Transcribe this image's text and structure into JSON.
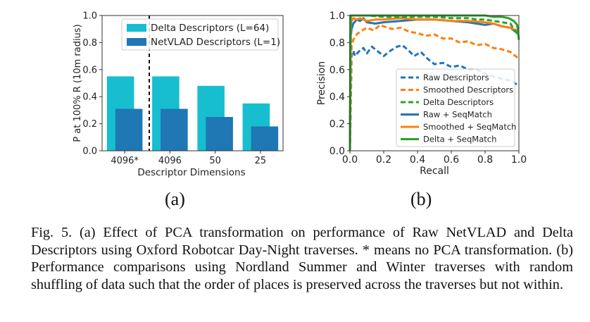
{
  "chart_data": [
    {
      "type": "bar",
      "categories": [
        "4096*",
        "4096",
        "50",
        "25"
      ],
      "series": [
        {
          "name": "Delta Descriptors (L=64)",
          "values": [
            0.55,
            0.55,
            0.48,
            0.35
          ],
          "color": "#17becf"
        },
        {
          "name": "NetVLAD Descriptors (L=1)",
          "values": [
            0.31,
            0.31,
            0.25,
            0.18
          ],
          "color": "#1f77b4"
        }
      ],
      "xlabel": "Descriptor Dimensions",
      "ylabel": "P at 100% R (10m radius)",
      "ylim": [
        0,
        1.0
      ],
      "yticks": [
        "0.0",
        "0.2",
        "0.4",
        "0.6",
        "0.8",
        "1.0"
      ],
      "legend_position": "top-right",
      "annotation": "dashed vertical separator between 4096* and 4096",
      "grid": false
    },
    {
      "type": "line",
      "xlabel": "Recall",
      "ylabel": "Precision",
      "xlim": [
        0,
        1.0
      ],
      "ylim": [
        0,
        1.0
      ],
      "xticks": [
        "0.0",
        "0.2",
        "0.4",
        "0.6",
        "0.8",
        "1.0"
      ],
      "yticks": [
        "0.0",
        "0.2",
        "0.4",
        "0.6",
        "0.8",
        "1.0"
      ],
      "legend_position": "lower-right",
      "grid": false,
      "series": [
        {
          "name": "Raw Descriptors",
          "color": "#1f77b4",
          "dash": true,
          "x": [
            0.0,
            0.01,
            0.02,
            0.03,
            0.05,
            0.08,
            0.1,
            0.13,
            0.16,
            0.2,
            0.24,
            0.28,
            0.31,
            0.34,
            0.38,
            0.42,
            0.46,
            0.5,
            0.55,
            0.6,
            0.65,
            0.7,
            0.75,
            0.8,
            0.85,
            0.9,
            0.95,
            1.0
          ],
          "y": [
            0.0,
            0.7,
            0.74,
            0.7,
            0.73,
            0.76,
            0.72,
            0.77,
            0.74,
            0.7,
            0.74,
            0.77,
            0.78,
            0.75,
            0.7,
            0.73,
            0.68,
            0.64,
            0.65,
            0.62,
            0.63,
            0.6,
            0.6,
            0.57,
            0.55,
            0.53,
            0.52,
            0.48
          ]
        },
        {
          "name": "Smoothed Descriptors",
          "color": "#ff7f0e",
          "dash": true,
          "x": [
            0.0,
            0.01,
            0.02,
            0.04,
            0.06,
            0.1,
            0.14,
            0.18,
            0.2,
            0.25,
            0.3,
            0.35,
            0.4,
            0.45,
            0.5,
            0.55,
            0.6,
            0.65,
            0.7,
            0.75,
            0.8,
            0.85,
            0.9,
            0.95,
            1.0
          ],
          "y": [
            0.0,
            0.78,
            0.82,
            0.86,
            0.88,
            0.91,
            0.89,
            0.93,
            0.92,
            0.9,
            0.91,
            0.88,
            0.87,
            0.85,
            0.86,
            0.83,
            0.83,
            0.8,
            0.81,
            0.78,
            0.79,
            0.76,
            0.75,
            0.73,
            0.68
          ]
        },
        {
          "name": "Delta Descriptors",
          "color": "#2ca02c",
          "dash": true,
          "x": [
            0.0,
            0.005,
            0.01,
            0.05,
            0.1,
            0.2,
            0.3,
            0.4,
            0.5,
            0.6,
            0.7,
            0.75,
            0.8,
            0.85,
            0.9,
            0.95,
            0.97,
            1.0
          ],
          "y": [
            0.0,
            0.99,
            1.0,
            1.0,
            1.0,
            0.99,
            0.99,
            0.99,
            0.99,
            0.98,
            0.98,
            0.97,
            0.97,
            0.96,
            0.95,
            0.94,
            0.9,
            0.85
          ]
        },
        {
          "name": "Raw + SeqMatch",
          "color": "#1f77b4",
          "dash": false,
          "x": [
            0.0,
            0.005,
            0.01,
            0.02,
            0.04,
            0.06,
            0.08,
            0.1,
            0.15,
            0.2,
            0.3,
            0.4,
            0.5,
            0.6,
            0.7,
            0.8,
            0.85,
            0.9,
            0.95,
            1.0
          ],
          "y": [
            0.0,
            0.85,
            0.9,
            0.94,
            0.97,
            0.96,
            0.98,
            0.95,
            0.94,
            0.95,
            0.96,
            0.97,
            0.97,
            0.96,
            0.95,
            0.93,
            0.94,
            0.92,
            0.91,
            0.86
          ]
        },
        {
          "name": "Smoothed + SeqMatch",
          "color": "#ff7f0e",
          "dash": false,
          "x": [
            0.0,
            0.005,
            0.01,
            0.02,
            0.04,
            0.06,
            0.1,
            0.15,
            0.2,
            0.3,
            0.4,
            0.5,
            0.6,
            0.7,
            0.8,
            0.85,
            0.9,
            0.95,
            1.0
          ],
          "y": [
            0.0,
            0.93,
            0.96,
            0.98,
            0.97,
            0.98,
            0.96,
            0.97,
            0.97,
            0.98,
            0.97,
            0.97,
            0.96,
            0.96,
            0.95,
            0.94,
            0.92,
            0.91,
            0.88
          ]
        },
        {
          "name": "Delta + SeqMatch",
          "color": "#2ca02c",
          "dash": false,
          "x": [
            0.0,
            0.003,
            0.01,
            0.1,
            0.2,
            0.3,
            0.4,
            0.5,
            0.6,
            0.7,
            0.8,
            0.85,
            0.9,
            0.94,
            0.97,
            0.99,
            1.0
          ],
          "y": [
            0.0,
            1.0,
            1.0,
            1.0,
            1.0,
            1.0,
            1.0,
            1.0,
            1.0,
            1.0,
            1.0,
            0.99,
            0.99,
            0.98,
            0.96,
            0.93,
            0.82
          ]
        }
      ]
    }
  ],
  "labels": {
    "a": "(a)",
    "b": "(b)"
  },
  "caption": "Fig. 5.  (a) Effect of PCA transformation on performance of Raw NetVLAD and Delta Descriptors using Oxford Robotcar Day-Night traverses. * means no PCA transformation. (b) Performance comparisons using Nordland Summer and Winter traverses with random shuffling of data such that the order of places is preserved across the traverses but not within."
}
